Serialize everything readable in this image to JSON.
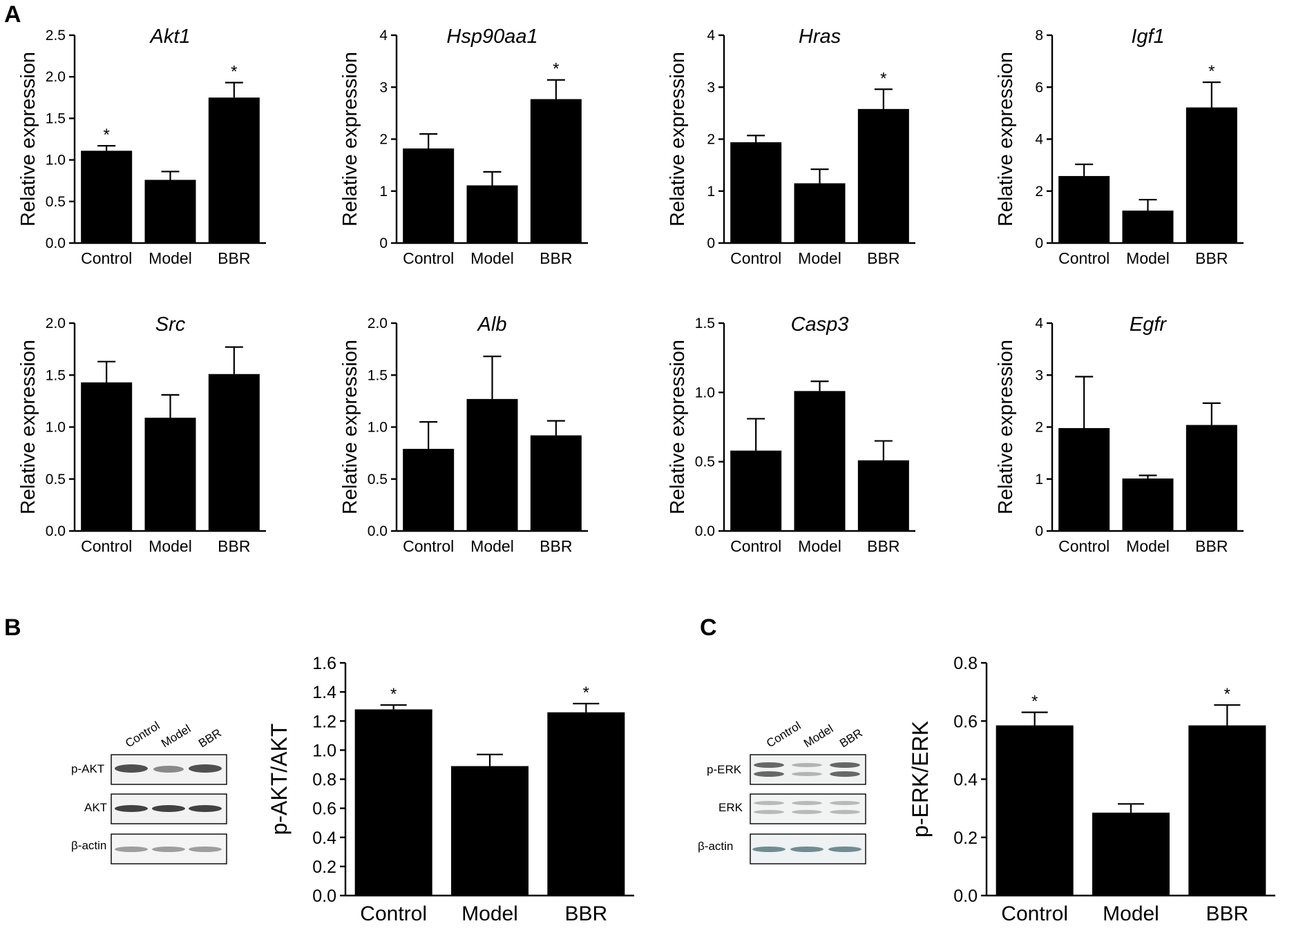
{
  "panels": {
    "a": "A",
    "b": "B",
    "c": "C"
  },
  "chart_data": [
    {
      "id": "akt1",
      "type": "bar",
      "title": "Akt1",
      "ylabel": "Relative expression",
      "categories": [
        "Control",
        "Model",
        "BBR"
      ],
      "values": [
        1.11,
        0.76,
        1.75
      ],
      "errors": [
        0.06,
        0.1,
        0.18
      ],
      "significance": [
        "*",
        "",
        "*"
      ],
      "ylim": [
        0,
        2.5
      ],
      "yticks": [
        "0.0",
        "0.5",
        "1.0",
        "1.5",
        "2.0",
        "2.5"
      ]
    },
    {
      "id": "hsp90aa1",
      "type": "bar",
      "title": "Hsp90aa1",
      "ylabel": "Relative expression",
      "categories": [
        "Control",
        "Model",
        "BBR"
      ],
      "values": [
        1.82,
        1.11,
        2.77
      ],
      "errors": [
        0.28,
        0.26,
        0.37
      ],
      "significance": [
        "",
        "",
        "*"
      ],
      "ylim": [
        0,
        4
      ],
      "yticks": [
        "0",
        "1",
        "2",
        "3",
        "4"
      ]
    },
    {
      "id": "hras",
      "type": "bar",
      "title": "Hras",
      "ylabel": "Relative expression",
      "categories": [
        "Control",
        "Model",
        "BBR"
      ],
      "values": [
        1.94,
        1.15,
        2.58
      ],
      "errors": [
        0.13,
        0.27,
        0.38
      ],
      "significance": [
        "",
        "",
        "*"
      ],
      "ylim": [
        0,
        4
      ],
      "yticks": [
        "0",
        "1",
        "2",
        "3",
        "4"
      ]
    },
    {
      "id": "igf1",
      "type": "bar",
      "title": "Igf1",
      "ylabel": "Relative expression",
      "categories": [
        "Control",
        "Model",
        "BBR"
      ],
      "values": [
        2.58,
        1.25,
        5.22
      ],
      "errors": [
        0.45,
        0.42,
        0.97
      ],
      "significance": [
        "",
        "",
        "*"
      ],
      "ylim": [
        0,
        8
      ],
      "yticks": [
        "0",
        "2",
        "4",
        "6",
        "8"
      ]
    },
    {
      "id": "src",
      "type": "bar",
      "title": "Src",
      "ylabel": "Relative expression",
      "categories": [
        "Control",
        "Model",
        "BBR"
      ],
      "values": [
        1.43,
        1.09,
        1.51
      ],
      "errors": [
        0.2,
        0.22,
        0.26
      ],
      "significance": [
        "",
        "",
        ""
      ],
      "ylim": [
        0,
        2.0
      ],
      "yticks": [
        "0.0",
        "0.5",
        "1.0",
        "1.5",
        "2.0"
      ]
    },
    {
      "id": "alb",
      "type": "bar",
      "title": "Alb",
      "ylabel": "Relative expression",
      "categories": [
        "Control",
        "Model",
        "BBR"
      ],
      "values": [
        0.79,
        1.27,
        0.92
      ],
      "errors": [
        0.26,
        0.41,
        0.14
      ],
      "significance": [
        "",
        "",
        ""
      ],
      "ylim": [
        0,
        2.0
      ],
      "yticks": [
        "0.0",
        "0.5",
        "1.0",
        "1.5",
        "2.0"
      ]
    },
    {
      "id": "casp3",
      "type": "bar",
      "title": "Casp3",
      "ylabel": "Relative expression",
      "categories": [
        "Control",
        "Model",
        "BBR"
      ],
      "values": [
        0.58,
        1.01,
        0.51
      ],
      "errors": [
        0.23,
        0.07,
        0.14
      ],
      "significance": [
        "",
        "",
        ""
      ],
      "ylim": [
        0,
        1.5
      ],
      "yticks": [
        "0.0",
        "0.5",
        "1.0",
        "1.5"
      ]
    },
    {
      "id": "egfr",
      "type": "bar",
      "title": "Egfr",
      "ylabel": "Relative expression",
      "categories": [
        "Control",
        "Model",
        "BBR"
      ],
      "values": [
        1.98,
        1.01,
        2.04
      ],
      "errors": [
        0.99,
        0.06,
        0.42
      ],
      "significance": [
        "",
        "",
        ""
      ],
      "ylim": [
        0,
        4
      ],
      "yticks": [
        "0",
        "1",
        "2",
        "3",
        "4"
      ]
    },
    {
      "id": "pakt",
      "type": "bar",
      "title": "",
      "ylabel": "p-AKT/AKT",
      "categories": [
        "Control",
        "Model",
        "BBR"
      ],
      "values": [
        1.28,
        0.89,
        1.26
      ],
      "errors": [
        0.03,
        0.08,
        0.06
      ],
      "significance": [
        "*",
        "",
        "*"
      ],
      "ylim": [
        0,
        1.6
      ],
      "yticks": [
        "0.0",
        "0.2",
        "0.4",
        "0.6",
        "0.8",
        "1.0",
        "1.2",
        "1.4",
        "1.6"
      ]
    },
    {
      "id": "perk",
      "type": "bar",
      "title": "",
      "ylabel": "p-ERK/ERK",
      "categories": [
        "Control",
        "Model",
        "BBR"
      ],
      "values": [
        0.585,
        0.285,
        0.585
      ],
      "errors": [
        0.045,
        0.03,
        0.07
      ],
      "significance": [
        "*",
        "",
        "*"
      ],
      "ylim": [
        0,
        0.8
      ],
      "yticks": [
        "0.0",
        "0.2",
        "0.4",
        "0.6",
        "0.8"
      ]
    }
  ],
  "blots": [
    {
      "id": "akt-blot",
      "lanes": [
        "Control",
        "Model",
        "BBR"
      ],
      "rows": [
        "p-AKT",
        "AKT",
        "β-actin"
      ]
    },
    {
      "id": "erk-blot",
      "lanes": [
        "Control",
        "Model",
        "BBR"
      ],
      "rows": [
        "p-ERK",
        "ERK",
        "β-actin"
      ]
    }
  ]
}
